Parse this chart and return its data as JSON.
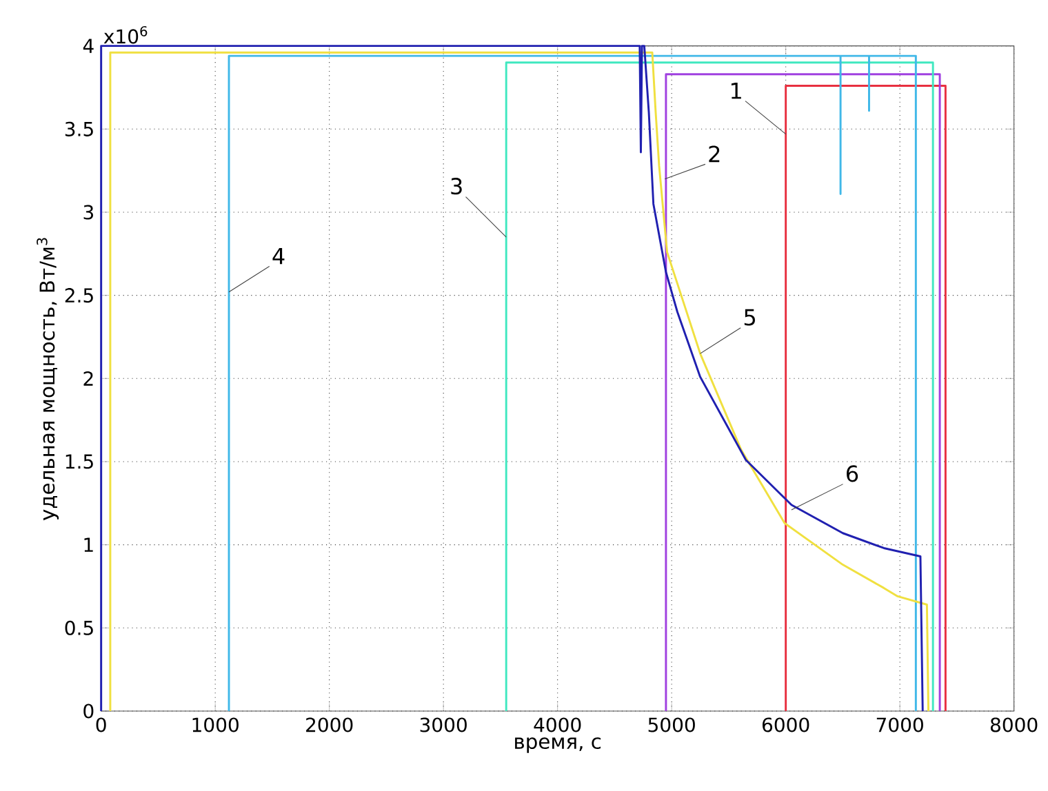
{
  "chart_data": {
    "type": "line",
    "xlabel": "время, с",
    "ylabel": "удельная мощность, Вт/м$^{3}$",
    "xlim": [
      0,
      8000
    ],
    "xticks": [
      0,
      1000,
      2000,
      3000,
      4000,
      5000,
      6000,
      7000,
      8000
    ],
    "ylim": [
      0,
      4
    ],
    "yticks": [
      0,
      0.5,
      1,
      1.5,
      2,
      2.5,
      3,
      3.5,
      4
    ],
    "grid": true,
    "marker": "none",
    "line_style": "solid",
    "series": [
      {
        "color": "#e83040",
        "x": [
          6000,
          6000,
          7400,
          7400
        ],
        "values": [
          0,
          3.76,
          3.76,
          0
        ]
      },
      {
        "color": "#a040e0",
        "x": [
          4950,
          4950,
          7350,
          7350
        ],
        "values": [
          0,
          3.83,
          3.83,
          0
        ]
      },
      {
        "color": "#40e8c0",
        "x": [
          3550,
          3550,
          7290,
          7290
        ],
        "values": [
          0,
          3.9,
          3.9,
          0
        ]
      },
      {
        "color": "#40b8e8",
        "x": [
          1120,
          1120,
          6480,
          6480,
          6480,
          6730,
          6730,
          6730,
          7140,
          7140
        ],
        "values": [
          0,
          3.94,
          3.94,
          3.11,
          3.94,
          3.94,
          3.61,
          3.94,
          3.94,
          0
        ]
      },
      {
        "color": "#f0e040",
        "x": [
          80,
          80,
          4830,
          4860,
          4890,
          4960,
          5250,
          5610,
          5990,
          6500,
          6860,
          6980,
          7237,
          7250
        ],
        "values": [
          0,
          3.96,
          3.96,
          3.6,
          3.28,
          2.76,
          2.15,
          1.57,
          1.13,
          0.88,
          0.74,
          0.69,
          0.64,
          0
        ]
      },
      {
        "color": "#2020b0",
        "x": [
          0,
          0,
          4720,
          4730,
          4740,
          4760,
          4800,
          4840,
          4950,
          5050,
          5250,
          5650,
          6050,
          6500,
          6860,
          7180,
          7200
        ],
        "values": [
          0,
          4.0,
          4.0,
          3.36,
          4.0,
          4.0,
          3.6,
          3.05,
          2.64,
          2.4,
          2.01,
          1.51,
          1.24,
          1.07,
          0.98,
          0.93,
          0
        ]
      }
    ],
    "annotations": [
      "x10$^{6}$",
      {
        "text": "1",
        "x": 6000,
        "y": 3.47
      },
      {
        "text": "2",
        "x": 4940,
        "y": 3.2
      },
      {
        "text": "3",
        "x": 3550,
        "y": 2.85
      },
      {
        "text": "4",
        "x": 1120,
        "y": 2.52
      },
      {
        "text": "5",
        "x": 5250,
        "y": 2.15
      },
      {
        "text": "6",
        "x": 6050,
        "y": 1.21
      }
    ]
  }
}
